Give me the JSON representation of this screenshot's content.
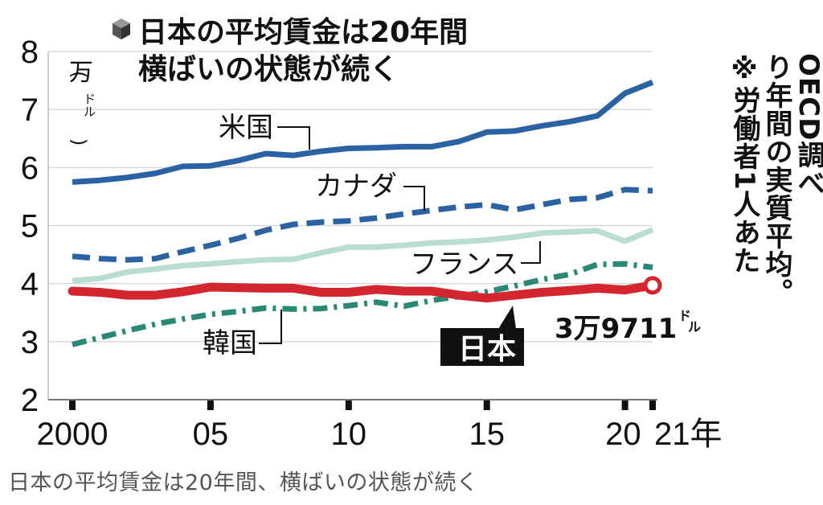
{
  "chart_data": {
    "type": "line",
    "title": [
      "日本の平均賃金は20年間",
      "横ばいの状態が続く"
    ],
    "ylabel": "(万ドル)",
    "unit_main": "万",
    "unit_sub": "ドル",
    "ylim": [
      2,
      8
    ],
    "yticks": [
      "2",
      "3",
      "4",
      "5",
      "6",
      "7",
      "8"
    ],
    "xlim": [
      2000,
      2021
    ],
    "xticks": [
      {
        "x": 2000,
        "label": "2000"
      },
      {
        "x": 2005,
        "label": "05"
      },
      {
        "x": 2010,
        "label": "10"
      },
      {
        "x": 2015,
        "label": "15"
      },
      {
        "x": 2020,
        "label": "20"
      },
      {
        "x": 2021,
        "label": "21年"
      }
    ],
    "x": [
      2000,
      2001,
      2002,
      2003,
      2004,
      2005,
      2006,
      2007,
      2008,
      2009,
      2010,
      2011,
      2012,
      2013,
      2014,
      2015,
      2016,
      2017,
      2018,
      2019,
      2020,
      2021
    ],
    "series": [
      {
        "name": "米国",
        "color": "#2b62a3",
        "style": "solid",
        "values": [
          5.75,
          5.78,
          5.83,
          5.9,
          6.02,
          6.03,
          6.12,
          6.24,
          6.21,
          6.28,
          6.33,
          6.34,
          6.36,
          6.36,
          6.45,
          6.61,
          6.63,
          6.72,
          6.79,
          6.89,
          7.28,
          7.47
        ]
      },
      {
        "name": "カナダ",
        "color": "#2b62a3",
        "style": "dashed",
        "values": [
          4.47,
          4.43,
          4.41,
          4.43,
          4.55,
          4.66,
          4.78,
          4.92,
          5.02,
          5.06,
          5.08,
          5.13,
          5.2,
          5.26,
          5.32,
          5.36,
          5.27,
          5.36,
          5.45,
          5.48,
          5.62,
          5.6
        ]
      },
      {
        "name": "フランス",
        "color": "#b9ddd0",
        "style": "solid",
        "values": [
          4.05,
          4.09,
          4.2,
          4.25,
          4.31,
          4.34,
          4.38,
          4.41,
          4.42,
          4.53,
          4.63,
          4.63,
          4.66,
          4.7,
          4.72,
          4.75,
          4.8,
          4.87,
          4.89,
          4.91,
          4.73,
          4.93
        ]
      },
      {
        "name": "韓国",
        "color": "#2a8876",
        "style": "dashdot",
        "values": [
          2.95,
          3.07,
          3.19,
          3.3,
          3.39,
          3.47,
          3.52,
          3.58,
          3.56,
          3.57,
          3.62,
          3.68,
          3.61,
          3.71,
          3.78,
          3.86,
          3.96,
          4.07,
          4.16,
          4.33,
          4.34,
          4.28
        ]
      },
      {
        "name": "日本",
        "color": "#d3262e",
        "style": "solid-bold",
        "values": [
          3.87,
          3.85,
          3.8,
          3.8,
          3.86,
          3.94,
          3.93,
          3.92,
          3.92,
          3.85,
          3.85,
          3.9,
          3.87,
          3.87,
          3.8,
          3.75,
          3.8,
          3.85,
          3.88,
          3.92,
          3.89,
          3.97
        ]
      }
    ],
    "annotations": [
      {
        "text": "3万9711",
        "unit": "ドル",
        "target": "日本",
        "x": 2021
      }
    ]
  },
  "note": "※労働者1人あたり年間の実質平均。OECD調べ",
  "caption": "日本の平均賃金は20年間、横ばいの状態が続く"
}
